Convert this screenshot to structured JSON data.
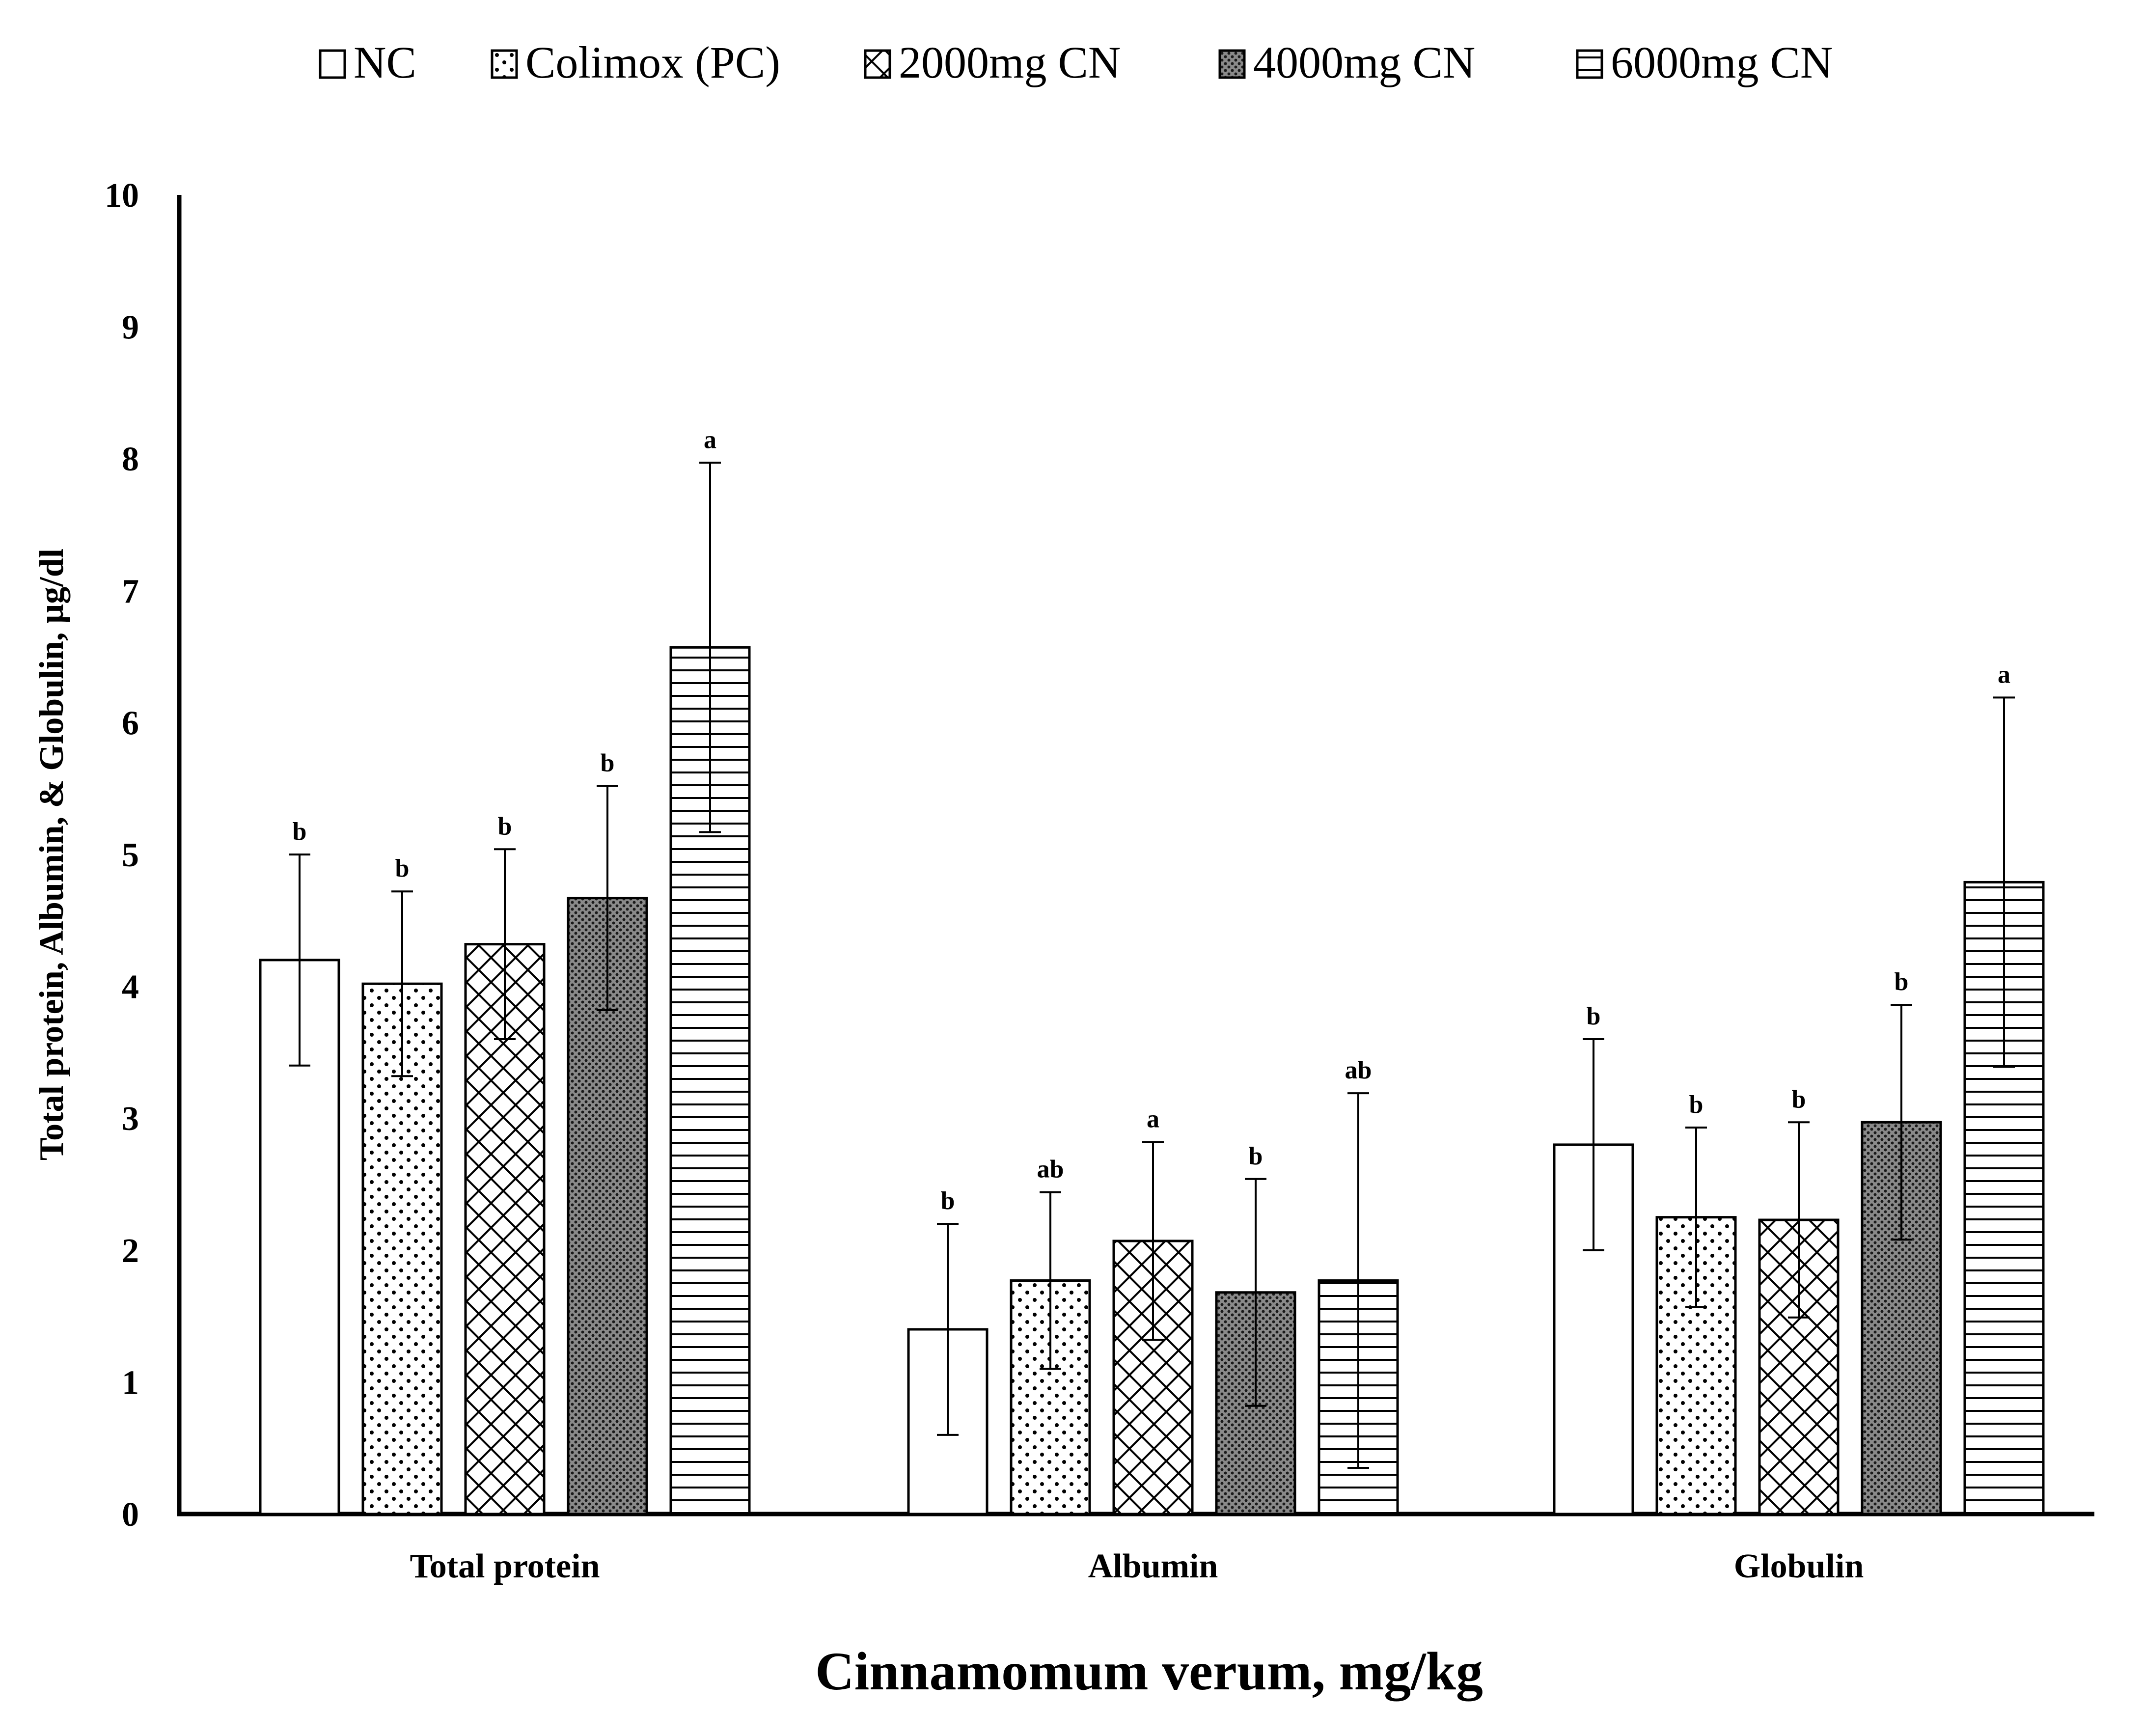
{
  "chart_data": {
    "type": "bar",
    "title": "",
    "xlabel": "Cinnamomum verum, mg/kg",
    "ylabel": "Total protein, Albumin, & Globulin, µg/dl",
    "ylim": [
      0,
      10
    ],
    "yticks": [
      0,
      1,
      2,
      3,
      4,
      5,
      6,
      7,
      8,
      9,
      10
    ],
    "grid": false,
    "legend_position": "top",
    "categories": [
      "Total protein",
      "Albumin",
      "Globulin"
    ],
    "series": [
      {
        "name": "NC",
        "pattern": "empty",
        "values": [
          4.2,
          1.4,
          2.8
        ],
        "errors": [
          0.8,
          0.8,
          0.8
        ],
        "labels": [
          "b",
          "b",
          "b"
        ]
      },
      {
        "name": "Colimox (PC)",
        "pattern": "dots",
        "values": [
          4.02,
          1.77,
          2.25
        ],
        "errors": [
          0.7,
          0.67,
          0.68
        ],
        "labels": [
          "b",
          "ab",
          "b"
        ]
      },
      {
        "name": "2000mg CN",
        "pattern": "diamond-cross",
        "values": [
          4.32,
          2.07,
          2.23
        ],
        "errors": [
          0.72,
          0.75,
          0.74
        ],
        "labels": [
          "b",
          "a",
          "b"
        ]
      },
      {
        "name": "4000mg CN",
        "pattern": "dense-dots",
        "values": [
          4.67,
          1.68,
          2.97
        ],
        "errors": [
          0.85,
          0.86,
          0.89
        ],
        "labels": [
          "b",
          "b",
          "b"
        ]
      },
      {
        "name": "6000mg CN",
        "pattern": "horizontal-lines",
        "values": [
          6.57,
          1.77,
          4.79
        ],
        "errors": [
          1.4,
          1.42,
          1.4
        ],
        "labels": [
          "a",
          "ab",
          "a"
        ]
      }
    ],
    "colors": {
      "bar_fill": "#ffffff",
      "stroke": "#000000",
      "pattern_dense": "#555555"
    }
  }
}
